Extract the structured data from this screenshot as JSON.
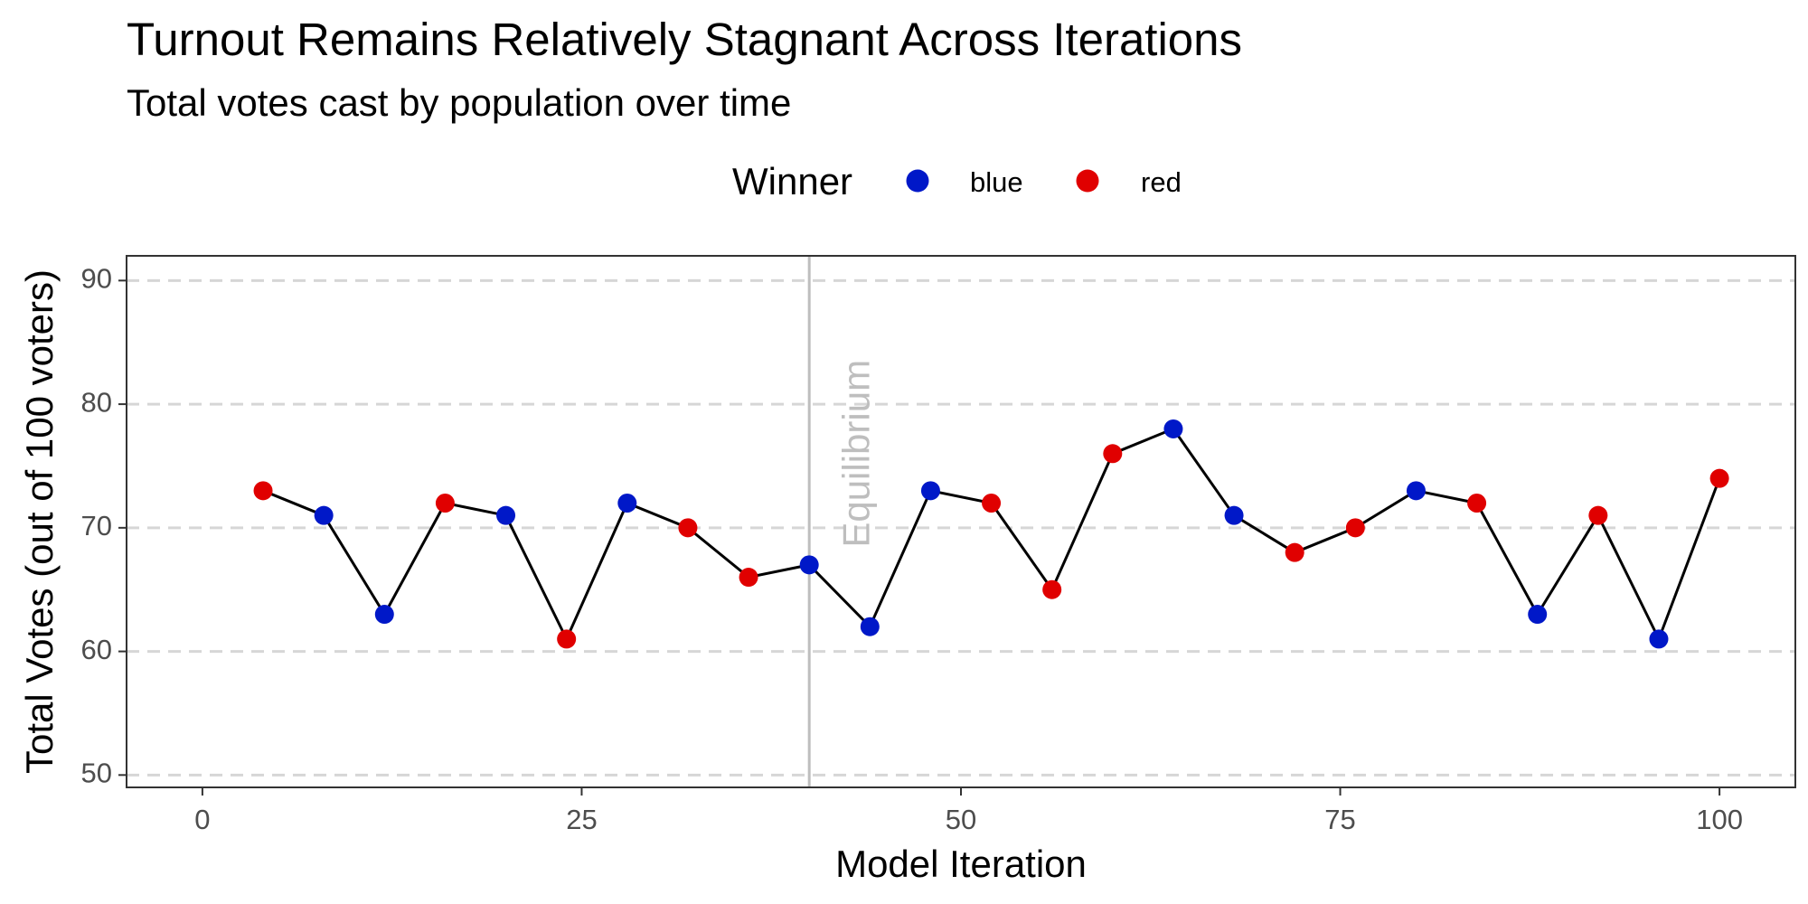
{
  "chart_data": {
    "type": "line",
    "title": "Turnout Remains Relatively Stagnant Across Iterations",
    "subtitle": "Total votes cast by population over time",
    "xlabel": "Model Iteration",
    "ylabel": "Total Votes (out of 100 voters)",
    "xlim": [
      -5,
      105
    ],
    "ylim": [
      49,
      92
    ],
    "x_ticks": [
      0,
      25,
      50,
      75,
      100
    ],
    "y_ticks": [
      50,
      60,
      70,
      80,
      90
    ],
    "grid": "horizontal dashed major lines",
    "legend": {
      "title": "Winner",
      "placement": "top",
      "entries": [
        {
          "label": "blue",
          "color": "#0018c8"
        },
        {
          "label": "red",
          "color": "#e00000"
        }
      ]
    },
    "line_color": "#000000",
    "annotation": {
      "label": "Equilibrium",
      "x": 40,
      "color": "#bebebe"
    },
    "points": [
      {
        "x": 4,
        "y": 73,
        "winner": "red"
      },
      {
        "x": 8,
        "y": 71,
        "winner": "blue"
      },
      {
        "x": 12,
        "y": 63,
        "winner": "blue"
      },
      {
        "x": 16,
        "y": 72,
        "winner": "red"
      },
      {
        "x": 20,
        "y": 71,
        "winner": "blue"
      },
      {
        "x": 24,
        "y": 61,
        "winner": "red"
      },
      {
        "x": 28,
        "y": 72,
        "winner": "blue"
      },
      {
        "x": 32,
        "y": 70,
        "winner": "red"
      },
      {
        "x": 36,
        "y": 66,
        "winner": "red"
      },
      {
        "x": 40,
        "y": 67,
        "winner": "blue"
      },
      {
        "x": 44,
        "y": 62,
        "winner": "blue"
      },
      {
        "x": 48,
        "y": 73,
        "winner": "blue"
      },
      {
        "x": 52,
        "y": 72,
        "winner": "red"
      },
      {
        "x": 56,
        "y": 65,
        "winner": "red"
      },
      {
        "x": 60,
        "y": 76,
        "winner": "red"
      },
      {
        "x": 64,
        "y": 78,
        "winner": "blue"
      },
      {
        "x": 68,
        "y": 71,
        "winner": "blue"
      },
      {
        "x": 72,
        "y": 68,
        "winner": "red"
      },
      {
        "x": 76,
        "y": 70,
        "winner": "red"
      },
      {
        "x": 80,
        "y": 73,
        "winner": "blue"
      },
      {
        "x": 84,
        "y": 72,
        "winner": "red"
      },
      {
        "x": 88,
        "y": 63,
        "winner": "blue"
      },
      {
        "x": 92,
        "y": 71,
        "winner": "red"
      },
      {
        "x": 96,
        "y": 61,
        "winner": "blue"
      },
      {
        "x": 100,
        "y": 74,
        "winner": "red"
      }
    ]
  }
}
